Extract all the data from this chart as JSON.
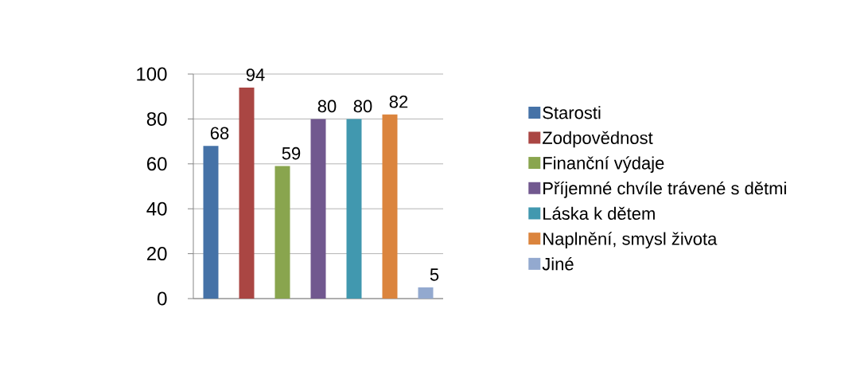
{
  "chart_data": {
    "type": "bar",
    "categories": [
      null
    ],
    "series": [
      {
        "name": "Starosti",
        "color": "#4572a7",
        "values": [
          68
        ]
      },
      {
        "name": "Zodpovědnost",
        "color": "#aa4643",
        "values": [
          94
        ]
      },
      {
        "name": "Finanční výdaje",
        "color": "#89a54e",
        "values": [
          59
        ]
      },
      {
        "name": "Příjemné chvíle trávené s dětmi",
        "color": "#71588f",
        "values": [
          80
        ]
      },
      {
        "name": "Láska k dětem",
        "color": "#4198af",
        "values": [
          80
        ]
      },
      {
        "name": "Naplnění, smysl života",
        "color": "#db843d",
        "values": [
          82
        ]
      },
      {
        "name": "Jiné",
        "color": "#93a9cf",
        "values": [
          5
        ]
      }
    ],
    "ylim": [
      0,
      100
    ],
    "yticks": [
      0,
      20,
      40,
      60,
      80,
      100
    ],
    "grid": "y",
    "legend": "right",
    "data_labels": true,
    "tick_labels": "y"
  }
}
